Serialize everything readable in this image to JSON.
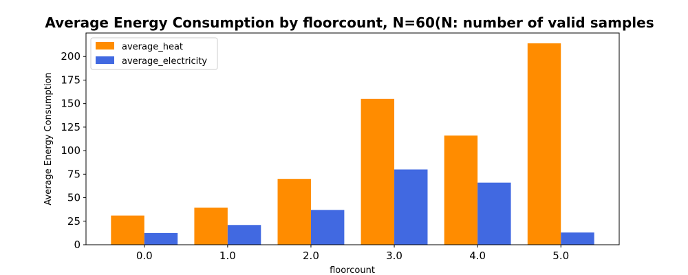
{
  "chart_data": {
    "type": "bar",
    "title": "Average Energy Consumption by floorcount, N=60(N: number of valid samples",
    "xlabel": "floorcount",
    "ylabel": "Average Energy Consumption",
    "categories": [
      "0.0",
      "1.0",
      "2.0",
      "3.0",
      "4.0",
      "5.0"
    ],
    "series": [
      {
        "name": "average_heat",
        "color": "#ff8c00",
        "values": [
          31,
          39.5,
          70,
          155,
          116,
          214
        ]
      },
      {
        "name": "average_electricity",
        "color": "#4169e1",
        "values": [
          12.5,
          21,
          37,
          80,
          66,
          13
        ]
      }
    ],
    "ylim": [
      0,
      225
    ],
    "yticks": [
      0,
      25,
      50,
      75,
      100,
      125,
      150,
      175,
      200
    ],
    "grid": false,
    "legend_position": "top-left"
  }
}
